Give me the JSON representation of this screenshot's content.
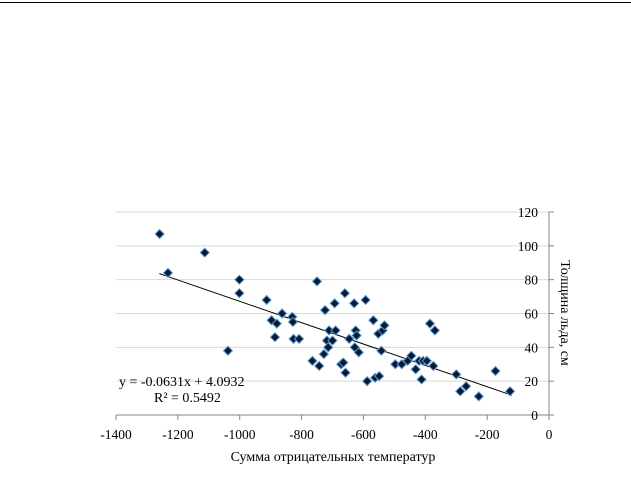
{
  "chart_data": {
    "type": "scatter",
    "xlabel": "Сумма отрицательных температур",
    "ylabel": "Толщина льда, см",
    "xlim": [
      -1400,
      0
    ],
    "ylim": [
      0,
      120
    ],
    "x_ticks": [
      "-1400",
      "-1200",
      "-1000",
      "-800",
      "-600",
      "-400",
      "-200",
      "0"
    ],
    "y_ticks": [
      "0",
      "20",
      "40",
      "60",
      "80",
      "100",
      "120"
    ],
    "grid": "horizontal",
    "marker": "diamond",
    "marker_color": "#0a1a33",
    "marker_edge_color": "#5b9bd5",
    "trendline": {
      "type": "linear",
      "slope": -0.0631,
      "intercept": 4.0932,
      "x_range": [
        -1260,
        -120
      ],
      "equation_label": "y = -0.0631x + 4.0932",
      "r2_label": "R² = 0.5492"
    },
    "points": [
      [
        -1259,
        107
      ],
      [
        -1232,
        84
      ],
      [
        -1113,
        96
      ],
      [
        -1038,
        38
      ],
      [
        -1001,
        80
      ],
      [
        -1001,
        72
      ],
      [
        -913,
        68
      ],
      [
        -897,
        56
      ],
      [
        -886,
        46
      ],
      [
        -880,
        54
      ],
      [
        -863,
        60
      ],
      [
        -830,
        58
      ],
      [
        -828,
        55
      ],
      [
        -826,
        45
      ],
      [
        -808,
        45
      ],
      [
        -765,
        32
      ],
      [
        -750,
        79
      ],
      [
        -743,
        29
      ],
      [
        -728,
        36
      ],
      [
        -724,
        62
      ],
      [
        -718,
        44
      ],
      [
        -714,
        40
      ],
      [
        -711,
        50
      ],
      [
        -700,
        44
      ],
      [
        -693,
        66
      ],
      [
        -690,
        50
      ],
      [
        -672,
        30
      ],
      [
        -665,
        31
      ],
      [
        -660,
        72
      ],
      [
        -658,
        25
      ],
      [
        -646,
        45
      ],
      [
        -630,
        66
      ],
      [
        -628,
        40
      ],
      [
        -625,
        50
      ],
      [
        -622,
        47
      ],
      [
        -615,
        37
      ],
      [
        -593,
        68
      ],
      [
        -588,
        20
      ],
      [
        -568,
        56
      ],
      [
        -562,
        22
      ],
      [
        -552,
        48
      ],
      [
        -549,
        23
      ],
      [
        -542,
        38
      ],
      [
        -538,
        50
      ],
      [
        -532,
        53
      ],
      [
        -497,
        30
      ],
      [
        -476,
        30
      ],
      [
        -457,
        32
      ],
      [
        -445,
        35
      ],
      [
        -431,
        27
      ],
      [
        -420,
        32
      ],
      [
        -412,
        21
      ],
      [
        -407,
        32
      ],
      [
        -395,
        32
      ],
      [
        -385,
        54
      ],
      [
        -374,
        29
      ],
      [
        -369,
        50
      ],
      [
        -300,
        24
      ],
      [
        -287,
        14
      ],
      [
        -268,
        17
      ],
      [
        -227,
        11
      ],
      [
        -173,
        26
      ],
      [
        -126,
        14
      ]
    ]
  }
}
